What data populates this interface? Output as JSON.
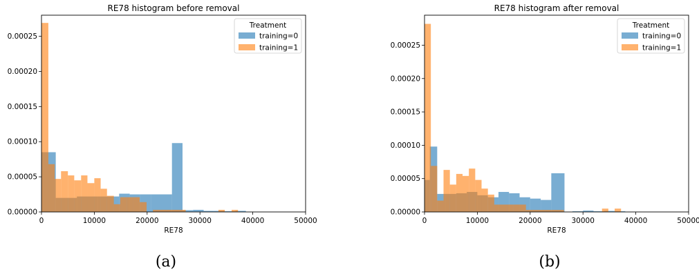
{
  "chart_data": [
    {
      "type": "bar",
      "title": "RE78 histogram before removal",
      "xlabel": "RE78",
      "ylabel": "",
      "xlim": [
        0,
        50000
      ],
      "ylim": [
        0,
        0.00028
      ],
      "xticks": [
        "0",
        "10000",
        "20000",
        "30000",
        "40000",
        "50000"
      ],
      "yticks": [
        "0.00000",
        "0.00005",
        "0.00010",
        "0.00015",
        "0.00020",
        "0.00025"
      ],
      "legend": {
        "title": "Treatment",
        "placement": "top-right"
      },
      "caption": "(a)",
      "series": [
        {
          "name": "training=0",
          "color": "#1f77b4",
          "bins": [
            [
              0,
              2700,
              8.5e-05
            ],
            [
              2700,
              4700,
              2e-05
            ],
            [
              4700,
              6700,
              2e-05
            ],
            [
              6700,
              8700,
              2.2e-05
            ],
            [
              8700,
              10700,
              2.2e-05
            ],
            [
              10700,
              12700,
              2.2e-05
            ],
            [
              12700,
              14700,
              2.2e-05
            ],
            [
              14700,
              16700,
              2.6e-05
            ],
            [
              16700,
              18700,
              2.5e-05
            ],
            [
              18700,
              20700,
              2.5e-05
            ],
            [
              20700,
              24700,
              2.5e-05
            ],
            [
              24700,
              26700,
              9.8e-05
            ],
            [
              26700,
              28700,
              2.5e-06
            ],
            [
              28700,
              30700,
              3e-06
            ],
            [
              30700,
              32700,
              1.5e-06
            ],
            [
              32700,
              34700,
              1.5e-06
            ],
            [
              34700,
              36700,
              1e-06
            ],
            [
              36700,
              38700,
              1.5e-06
            ]
          ]
        },
        {
          "name": "training=1",
          "color": "#ff7f0e",
          "bins": [
            [
              0,
              1300,
              0.000269
            ],
            [
              1300,
              2500,
              6.8e-05
            ],
            [
              2500,
              3700,
              4.7e-05
            ],
            [
              3700,
              5000,
              5.8e-05
            ],
            [
              5000,
              6200,
              5.2e-05
            ],
            [
              6200,
              7500,
              4.5e-05
            ],
            [
              7500,
              8700,
              5.2e-05
            ],
            [
              8700,
              10000,
              4.1e-05
            ],
            [
              10000,
              11200,
              4.8e-05
            ],
            [
              11200,
              12400,
              3.3e-05
            ],
            [
              12400,
              13700,
              2.3e-05
            ],
            [
              13700,
              14900,
              1.1e-05
            ],
            [
              14900,
              16200,
              2.1e-05
            ],
            [
              16200,
              17400,
              2.1e-05
            ],
            [
              17400,
              18600,
              2.1e-05
            ],
            [
              18600,
              19900,
              1.4e-05
            ],
            [
              19900,
              21100,
              0.0
            ],
            [
              21100,
              22400,
              3e-06
            ],
            [
              22400,
              23600,
              3e-06
            ],
            [
              23600,
              24800,
              3e-06
            ],
            [
              24800,
              26100,
              3e-06
            ],
            [
              26100,
              27300,
              3e-06
            ],
            [
              27300,
              28500,
              0.0
            ],
            [
              28500,
              29800,
              0.0
            ],
            [
              29800,
              31000,
              0.0
            ],
            [
              31000,
              32300,
              0.0
            ],
            [
              32300,
              33500,
              0.0
            ],
            [
              33500,
              34700,
              3e-06
            ],
            [
              34700,
              36000,
              0.0
            ],
            [
              36000,
              37200,
              3e-06
            ]
          ]
        }
      ]
    },
    {
      "type": "bar",
      "title": "RE78 histogram after removal",
      "xlabel": "RE78",
      "ylabel": "",
      "xlim": [
        0,
        50000
      ],
      "ylim": [
        0,
        0.000295
      ],
      "xticks": [
        "0",
        "10000",
        "20000",
        "30000",
        "40000",
        "50000"
      ],
      "yticks": [
        "0.00000",
        "0.00005",
        "0.00010",
        "0.00015",
        "0.00020",
        "0.00025"
      ],
      "legend": {
        "title": "Treatment",
        "placement": "top-right"
      },
      "caption": "(b)",
      "series": [
        {
          "name": "training=0",
          "color": "#1f77b4",
          "bins": [
            [
              0,
              1000,
              4.8e-05
            ],
            [
              1000,
              2400,
              9.8e-05
            ],
            [
              2400,
              4000,
              2.7e-05
            ],
            [
              4000,
              6000,
              2.7e-05
            ],
            [
              6000,
              8000,
              2.8e-05
            ],
            [
              8000,
              10000,
              3e-05
            ],
            [
              10000,
              12000,
              2.5e-05
            ],
            [
              12000,
              14000,
              2.2e-05
            ],
            [
              14000,
              16000,
              3e-05
            ],
            [
              16000,
              18000,
              2.8e-05
            ],
            [
              18000,
              20000,
              2.2e-05
            ],
            [
              20000,
              22000,
              2e-05
            ],
            [
              22000,
              24000,
              1.8e-05
            ],
            [
              24000,
              26500,
              5.8e-05
            ],
            [
              26500,
              28000,
              0.0
            ],
            [
              28000,
              30000,
              1e-06
            ],
            [
              30000,
              32000,
              2e-06
            ],
            [
              32000,
              34000,
              1e-06
            ],
            [
              34000,
              36000,
              1.5e-06
            ],
            [
              36000,
              38000,
              1e-06
            ]
          ]
        },
        {
          "name": "training=1",
          "color": "#ff7f0e",
          "bins": [
            [
              0,
              1200,
              0.000282
            ],
            [
              1200,
              2400,
              6.9e-05
            ],
            [
              2400,
              3600,
              1.7e-05
            ],
            [
              3600,
              4800,
              6.3e-05
            ],
            [
              4800,
              6000,
              4.1e-05
            ],
            [
              6000,
              7200,
              5.7e-05
            ],
            [
              7200,
              8400,
              5.4e-05
            ],
            [
              8400,
              9600,
              6.5e-05
            ],
            [
              9600,
              10800,
              4.8e-05
            ],
            [
              10800,
              12000,
              3.5e-05
            ],
            [
              12000,
              13200,
              2.6e-05
            ],
            [
              13200,
              14400,
              1.1e-05
            ],
            [
              14400,
              15600,
              1.1e-05
            ],
            [
              15600,
              16800,
              1.1e-05
            ],
            [
              16800,
              18000,
              1.1e-05
            ],
            [
              18000,
              19200,
              1.1e-05
            ],
            [
              19200,
              20400,
              3e-06
            ],
            [
              20400,
              21600,
              3e-06
            ],
            [
              21600,
              22800,
              3e-06
            ],
            [
              22800,
              24000,
              3e-06
            ],
            [
              24000,
              25200,
              3e-06
            ],
            [
              25200,
              26400,
              3e-06
            ],
            [
              33600,
              34800,
              5e-06
            ],
            [
              36000,
              37200,
              5e-06
            ]
          ]
        }
      ]
    }
  ]
}
